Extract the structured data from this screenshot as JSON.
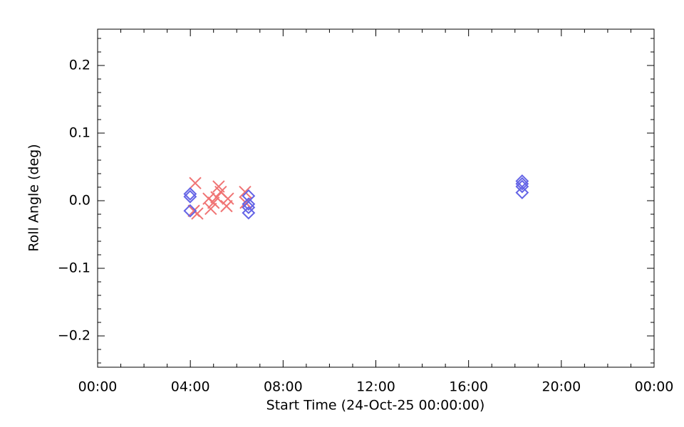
{
  "chart_data": {
    "type": "scatter",
    "xlabel": "Start Time (24-Oct-25 00:00:00)",
    "ylabel": "Roll Angle (deg)",
    "xlim": [
      0,
      24
    ],
    "xticks": [
      {
        "value": 0,
        "label": "00:00"
      },
      {
        "value": 4,
        "label": "04:00"
      },
      {
        "value": 8,
        "label": "08:00"
      },
      {
        "value": 12,
        "label": "12:00"
      },
      {
        "value": 16,
        "label": "16:00"
      },
      {
        "value": 20,
        "label": "20:00"
      },
      {
        "value": 24,
        "label": "00:00"
      }
    ],
    "xminorticks": [
      1,
      2,
      3,
      5,
      6,
      7,
      9,
      10,
      11,
      13,
      14,
      15,
      17,
      18,
      19,
      21,
      22,
      23
    ],
    "ylim": [
      -0.2463,
      0.2537
    ],
    "yticks": [
      {
        "value": -0.2,
        "label": "−0.2"
      },
      {
        "value": -0.1,
        "label": "−0.1"
      },
      {
        "value": 0,
        "label": "0.0"
      },
      0.1,
      0.2
    ],
    "yminorticks": [
      -0.24,
      -0.22,
      -0.18,
      -0.16,
      -0.14,
      -0.12,
      -0.08,
      -0.06,
      -0.04,
      -0.02,
      0.02,
      0.04,
      0.06,
      0.08,
      0.12,
      0.14,
      0.16,
      0.18,
      0.22,
      0.24
    ],
    "series": [
      {
        "marker": "x",
        "color": "#f07474",
        "x": [
          4.21,
          4.15,
          4.3,
          4.79,
          4.88,
          5.0,
          5.22,
          5.13,
          5.31,
          5.56,
          5.62,
          6.36,
          6.39
        ],
        "values": [
          0.026,
          -0.015,
          -0.019,
          0.003,
          -0.012,
          -0.003,
          0.021,
          0.005,
          0.013,
          -0.008,
          0.003,
          0.013,
          -0.003
        ]
      },
      {
        "marker": "diamond",
        "color": "#6464e6",
        "x": [
          3.99,
          3.99,
          3.99,
          6.51,
          6.51,
          6.51,
          6.51,
          18.31,
          18.31,
          18.31,
          18.31
        ],
        "values": [
          0.01,
          0.006,
          -0.015,
          0.007,
          -0.005,
          -0.01,
          -0.018,
          0.029,
          0.025,
          0.021,
          0.012
        ]
      }
    ]
  }
}
